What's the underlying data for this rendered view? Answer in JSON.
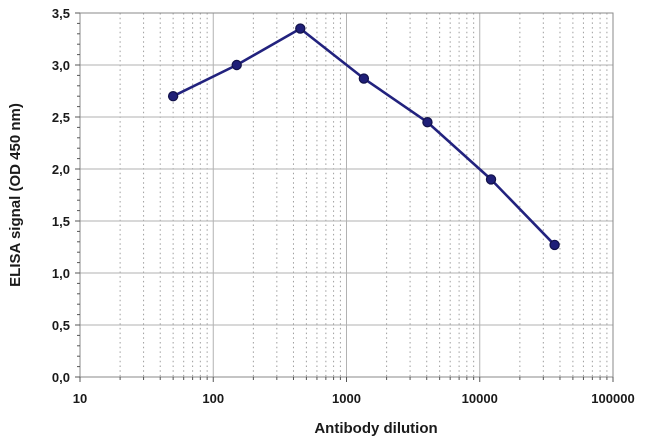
{
  "chart_data": {
    "type": "line",
    "title": "",
    "xlabel": "Antibody dilution",
    "ylabel": "ELISA signal (OD 450 nm)",
    "x_scale": "log10",
    "xlim": [
      10,
      100000
    ],
    "ylim": [
      0,
      3.5
    ],
    "grid": {
      "major": true,
      "minor_vertical_dotted": true
    },
    "legend": "none",
    "x_tick_values": [
      10,
      100,
      1000,
      10000,
      100000
    ],
    "x_tick_labels": [
      "10",
      "100",
      "1000",
      "10000",
      "100000"
    ],
    "y_tick_values": [
      0,
      0.5,
      1.0,
      1.5,
      2.0,
      2.5,
      3.0,
      3.5
    ],
    "y_tick_labels": [
      "0,0",
      "0,5",
      "1,0",
      "1,5",
      "2,0",
      "2,5",
      "3,0",
      "3,5"
    ],
    "y_minor_tick_step": 0.1,
    "series": [
      {
        "name": "ELISA signal",
        "x": [
          50,
          150,
          450,
          1350,
          4050,
          12150,
          36450
        ],
        "y": [
          2.7,
          3.0,
          3.35,
          2.87,
          2.45,
          1.9,
          1.27
        ],
        "marker": "circle"
      }
    ],
    "colors": {
      "line": "#22227e",
      "marker_fill": "#1f1f78",
      "marker_stroke": "#12124a",
      "grid_major": "#b2b2b2",
      "grid_minor": "#9e9e9e",
      "axis_border": "#8a8a8a",
      "tick_mark": "#555555",
      "text": "#1a1a1a",
      "background": "#ffffff"
    }
  }
}
